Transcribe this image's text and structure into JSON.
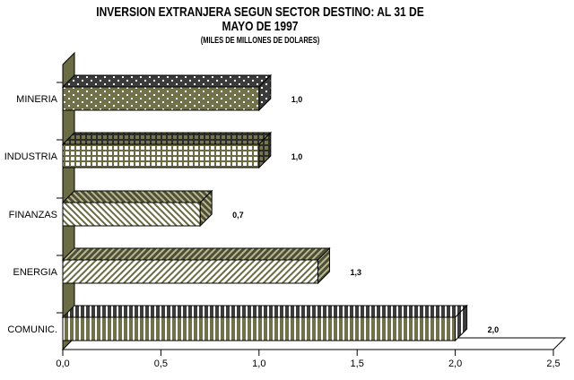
{
  "page": {
    "background": "#ffffff"
  },
  "chart_data": {
    "type": "bar",
    "variant": "3d-horizontal",
    "title_line1": "INVERSION EXTRANJERA SEGUN SECTOR DESTINO: AL 31 DE",
    "title_line2": "MAYO DE 1997",
    "subtitle": "(MILES DE MILLONES DE DOLARES)",
    "categories": [
      "MINERIA",
      "INDUSTRIA",
      "FINANZAS",
      "ENERGIA",
      "COMUNIC."
    ],
    "values": [
      1.0,
      1.0,
      0.7,
      1.3,
      2.0
    ],
    "value_labels": [
      "1,0",
      "1,0",
      "0,7",
      "1,3",
      "2,0"
    ],
    "bar_patterns": [
      "dots",
      "grid",
      "diagonal-down",
      "diagonal-up",
      "vertical-stripes"
    ],
    "x_axis": {
      "range": [
        0,
        2.5
      ],
      "ticks": [
        0,
        0.5,
        1.0,
        1.5,
        2.0,
        2.5
      ],
      "tick_labels": [
        "0,0",
        "0,5",
        "1,0",
        "1,5",
        "2,0",
        "2,5"
      ]
    },
    "ylabel": "",
    "xlabel": "",
    "legend": "none",
    "grid": "off",
    "colors": {
      "bar_olive": "#72724a",
      "bar_grid_olive": "#6b6b44",
      "bar_dark_top": "#3b3b3b",
      "wall": "#6b6b44",
      "stripe_white": "#ffffff",
      "outline": "#000000"
    }
  }
}
